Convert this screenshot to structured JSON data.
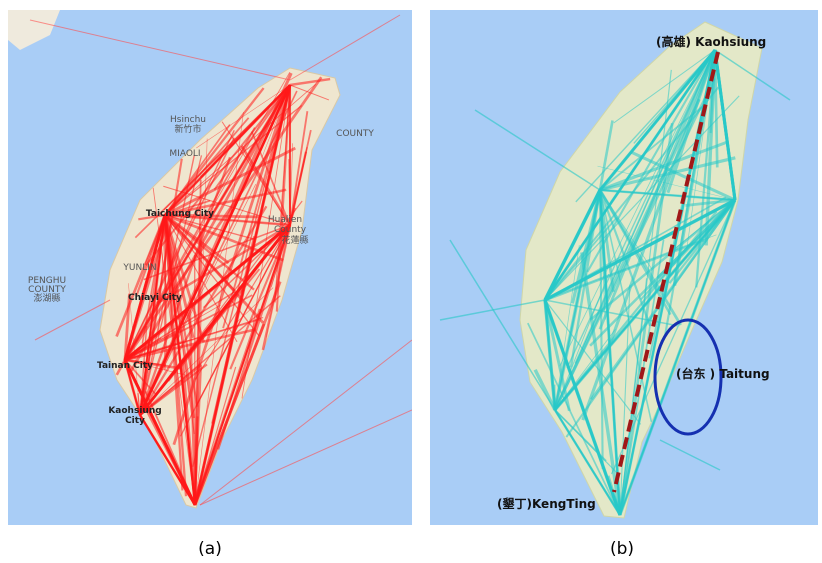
{
  "panels": [
    {
      "caption": "(a)",
      "map_labels": [
        "Hsinchu",
        "新竹市",
        "MIAOLI",
        "Taichung City",
        "Hualien",
        "County",
        "花蓮縣",
        "PENGHU",
        "COUNTY",
        "澎湖縣",
        "YUNLIN",
        "Chiayi City",
        "Tainan City",
        "Kaohsiung",
        "City",
        "COUNTY"
      ]
    },
    {
      "caption": "(b)",
      "annotations": [
        "(高雄) Kaohsiung",
        "(台东 ) Taitung",
        "(墾丁)KengTing"
      ]
    }
  ]
}
